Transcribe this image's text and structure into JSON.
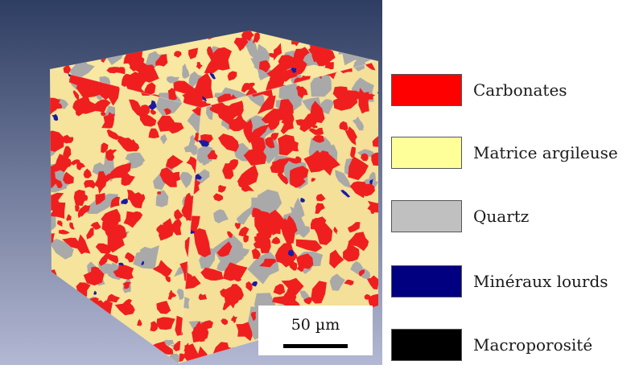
{
  "scale_bar": {
    "label": "50 µm"
  },
  "legend": {
    "items": [
      {
        "label": "Carbonates",
        "color": "#ff0000"
      },
      {
        "label": "Matrice argileuse",
        "color": "#ffff99"
      },
      {
        "label": "Quartz",
        "color": "#c0c0c0"
      },
      {
        "label": "Minéraux lourds",
        "color": "#000080"
      },
      {
        "label": "Macroporosité",
        "color": "#000000"
      }
    ]
  },
  "render": {
    "background_top": "#2e3d62",
    "background_bottom": "#b3b8d3",
    "matrix_color": "#f8e8a2",
    "carbonate_color": "#ef1f1f",
    "quartz_color": "#a9a9a9",
    "heavy_color": "#1a1aa6"
  }
}
